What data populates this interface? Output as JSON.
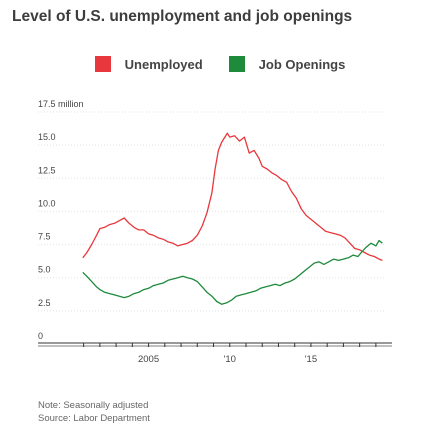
{
  "chart_data": {
    "type": "line",
    "title": "Level of U.S. unemployment and job openings",
    "y_unit": "million",
    "ylim": [
      0,
      17.5
    ],
    "y_ticks": [
      {
        "value": 17.5,
        "label": "17.5 million"
      },
      {
        "value": 15,
        "label": "15.0"
      },
      {
        "value": 12.5,
        "label": "12.5"
      },
      {
        "value": 10,
        "label": "10.0"
      },
      {
        "value": 7.5,
        "label": "7.5"
      },
      {
        "value": 5,
        "label": "5.0"
      },
      {
        "value": 2.5,
        "label": "2.5"
      },
      {
        "value": 0,
        "label": "0"
      }
    ],
    "xlim": [
      2000.9,
      2019.5
    ],
    "x_tick_labels": [
      {
        "year": 2005,
        "label": "2005"
      },
      {
        "year": 2010,
        "label": "'10"
      },
      {
        "year": 2015,
        "label": "'15"
      }
    ],
    "x_minor_ticks": [
      2001,
      2002,
      2003,
      2004,
      2005,
      2006,
      2007,
      2008,
      2009,
      2010,
      2011,
      2012,
      2013,
      2014,
      2015,
      2016,
      2017,
      2018,
      2019
    ],
    "grid": "horizontal",
    "legend_position": "top-center",
    "series": [
      {
        "name": "Unemployed",
        "color": "#e8383d",
        "points": [
          [
            2000.95,
            5.9
          ],
          [
            2001.2,
            6.3
          ],
          [
            2001.5,
            6.9
          ],
          [
            2001.8,
            7.6
          ],
          [
            2002.0,
            8.1
          ],
          [
            2002.3,
            8.2
          ],
          [
            2002.6,
            8.4
          ],
          [
            2002.9,
            8.5
          ],
          [
            2003.2,
            8.7
          ],
          [
            2003.5,
            8.9
          ],
          [
            2003.8,
            8.5
          ],
          [
            2004.1,
            8.2
          ],
          [
            2004.4,
            8.0
          ],
          [
            2004.7,
            8.0
          ],
          [
            2005.0,
            7.7
          ],
          [
            2005.3,
            7.6
          ],
          [
            2005.6,
            7.4
          ],
          [
            2005.9,
            7.3
          ],
          [
            2006.2,
            7.1
          ],
          [
            2006.5,
            7.0
          ],
          [
            2006.8,
            6.8
          ],
          [
            2007.1,
            6.9
          ],
          [
            2007.4,
            7.0
          ],
          [
            2007.7,
            7.2
          ],
          [
            2008.0,
            7.6
          ],
          [
            2008.3,
            8.3
          ],
          [
            2008.6,
            9.3
          ],
          [
            2008.9,
            10.8
          ],
          [
            2009.1,
            12.6
          ],
          [
            2009.3,
            14.0
          ],
          [
            2009.5,
            14.6
          ],
          [
            2009.7,
            15.0
          ],
          [
            2009.85,
            15.3
          ],
          [
            2010.0,
            15.0
          ],
          [
            2010.3,
            15.1
          ],
          [
            2010.6,
            14.7
          ],
          [
            2010.9,
            15.0
          ],
          [
            2011.2,
            13.8
          ],
          [
            2011.5,
            14.0
          ],
          [
            2011.8,
            13.4
          ],
          [
            2012.0,
            12.8
          ],
          [
            2012.3,
            12.6
          ],
          [
            2012.6,
            12.3
          ],
          [
            2012.9,
            12.1
          ],
          [
            2013.2,
            11.8
          ],
          [
            2013.5,
            11.6
          ],
          [
            2013.8,
            10.9
          ],
          [
            2014.1,
            10.4
          ],
          [
            2014.4,
            9.6
          ],
          [
            2014.7,
            9.1
          ],
          [
            2015.0,
            8.8
          ],
          [
            2015.3,
            8.5
          ],
          [
            2015.6,
            8.2
          ],
          [
            2015.9,
            7.9
          ],
          [
            2016.2,
            7.8
          ],
          [
            2016.5,
            7.7
          ],
          [
            2016.8,
            7.6
          ],
          [
            2017.1,
            7.4
          ],
          [
            2017.4,
            7.0
          ],
          [
            2017.7,
            6.6
          ],
          [
            2018.0,
            6.5
          ],
          [
            2018.3,
            6.3
          ],
          [
            2018.6,
            6.1
          ],
          [
            2018.9,
            6.0
          ],
          [
            2019.2,
            5.8
          ],
          [
            2019.4,
            5.7
          ]
        ]
      },
      {
        "name": "Job Openings",
        "color": "#1e8a3c",
        "points": [
          [
            2000.95,
            4.8
          ],
          [
            2001.2,
            4.5
          ],
          [
            2001.5,
            4.1
          ],
          [
            2001.8,
            3.7
          ],
          [
            2002.0,
            3.5
          ],
          [
            2002.3,
            3.3
          ],
          [
            2002.6,
            3.2
          ],
          [
            2002.9,
            3.1
          ],
          [
            2003.2,
            3.0
          ],
          [
            2003.5,
            2.9
          ],
          [
            2003.8,
            3.0
          ],
          [
            2004.1,
            3.2
          ],
          [
            2004.4,
            3.3
          ],
          [
            2004.7,
            3.5
          ],
          [
            2005.0,
            3.6
          ],
          [
            2005.3,
            3.8
          ],
          [
            2005.6,
            3.9
          ],
          [
            2005.9,
            4.0
          ],
          [
            2006.2,
            4.2
          ],
          [
            2006.5,
            4.3
          ],
          [
            2006.8,
            4.4
          ],
          [
            2007.1,
            4.5
          ],
          [
            2007.4,
            4.4
          ],
          [
            2007.7,
            4.3
          ],
          [
            2008.0,
            4.1
          ],
          [
            2008.3,
            3.7
          ],
          [
            2008.6,
            3.3
          ],
          [
            2008.9,
            3.0
          ],
          [
            2009.2,
            2.6
          ],
          [
            2009.5,
            2.4
          ],
          [
            2009.8,
            2.5
          ],
          [
            2010.1,
            2.7
          ],
          [
            2010.4,
            3.0
          ],
          [
            2010.7,
            3.1
          ],
          [
            2011.0,
            3.2
          ],
          [
            2011.3,
            3.3
          ],
          [
            2011.6,
            3.4
          ],
          [
            2011.9,
            3.6
          ],
          [
            2012.2,
            3.7
          ],
          [
            2012.5,
            3.8
          ],
          [
            2012.8,
            3.9
          ],
          [
            2013.1,
            3.8
          ],
          [
            2013.4,
            4.0
          ],
          [
            2013.7,
            4.1
          ],
          [
            2014.0,
            4.3
          ],
          [
            2014.3,
            4.6
          ],
          [
            2014.6,
            4.9
          ],
          [
            2014.9,
            5.2
          ],
          [
            2015.2,
            5.5
          ],
          [
            2015.5,
            5.6
          ],
          [
            2015.8,
            5.4
          ],
          [
            2016.1,
            5.6
          ],
          [
            2016.4,
            5.8
          ],
          [
            2016.7,
            5.7
          ],
          [
            2017.0,
            5.8
          ],
          [
            2017.3,
            5.9
          ],
          [
            2017.6,
            6.1
          ],
          [
            2017.9,
            6.0
          ],
          [
            2018.1,
            6.3
          ],
          [
            2018.4,
            6.7
          ],
          [
            2018.7,
            7.0
          ],
          [
            2019.0,
            6.8
          ],
          [
            2019.2,
            7.2
          ],
          [
            2019.4,
            7.0
          ]
        ]
      }
    ]
  },
  "note": "Note: Seasonally adjusted",
  "source": "Source: Labor Department"
}
